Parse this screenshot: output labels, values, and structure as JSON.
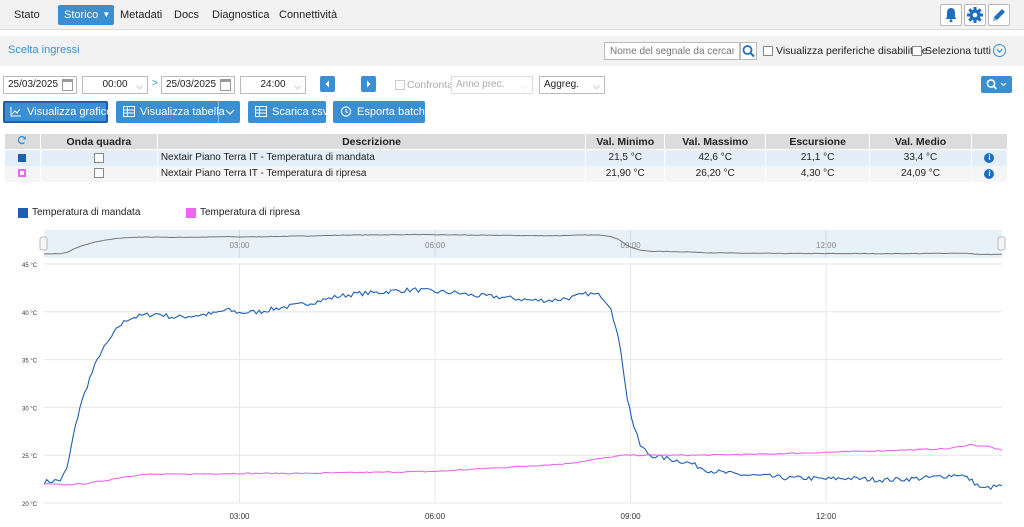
{
  "nav": {
    "items": [
      "Stato",
      "Storico",
      "Metadati",
      "Docs",
      "Diagnostica",
      "Connettività"
    ],
    "active_index": 1
  },
  "top_icons": [
    "bell-icon",
    "gear-icon",
    "pencil-icon"
  ],
  "subbar": {
    "title": "Scelta ingressi",
    "search_placeholder": "Nome del segnale da cercare",
    "show_disabled_label": "Visualizza periferiche disabilitate",
    "select_all_label": "Seleziona tutti"
  },
  "controls": {
    "date_from": "25/03/2025",
    "time_from": "00:00",
    "date_to": "25/03/2025",
    "time_to": "24:00",
    "compare_label": "Confronta",
    "compare_option": "Anno prec.",
    "aggregation": "Aggreg."
  },
  "buttons": {
    "show_chart": "Visualizza grafico",
    "show_table": "Visualizza tabella",
    "download_csv": "Scarica csv",
    "export_batch": "Esporta batch"
  },
  "table": {
    "headers": [
      "Onda quadra",
      "Descrizione",
      "Val. Minimo",
      "Val. Massimo",
      "Escursione",
      "Val. Medio"
    ],
    "rows": [
      {
        "color": "#1e5fb4",
        "description": "Nextair Piano Terra IT - Temperatura di mandata",
        "min": "21,5 °C",
        "max": "42,6 °C",
        "range": "21,1 °C",
        "avg": "33,4 °C"
      },
      {
        "color": "#ee66ee",
        "description": "Nextair Piano Terra IT - Temperatura di ripresa",
        "min": "21,90 °C",
        "max": "26,20 °C",
        "range": "4,30 °C",
        "avg": "24,09 °C"
      }
    ]
  },
  "chart_data": {
    "type": "line",
    "x_tick_labels": [
      "03:00",
      "06:00",
      "09:00",
      "12:00"
    ],
    "y_tick_labels": [
      "45 °C",
      "40 °C",
      "35 °C",
      "30 °C",
      "25 °C",
      "20 °C"
    ],
    "ylim": [
      20,
      45
    ],
    "xlim_hours": [
      0,
      14.7
    ],
    "navigator_tick_labels": [
      "03:00",
      "06:00",
      "09:00",
      "12:00"
    ],
    "series": [
      {
        "name": "Temperatura di mandata",
        "color": "#1e5fb4",
        "points": [
          [
            0,
            22.2
          ],
          [
            0.25,
            22.4
          ],
          [
            0.35,
            23.5
          ],
          [
            0.45,
            27
          ],
          [
            0.55,
            30
          ],
          [
            0.7,
            33
          ],
          [
            0.85,
            35.5
          ],
          [
            1.0,
            37
          ],
          [
            1.15,
            38.5
          ],
          [
            1.3,
            39.3
          ],
          [
            1.5,
            39.6
          ],
          [
            1.75,
            39.8
          ],
          [
            2.0,
            39.4
          ],
          [
            2.3,
            39.6
          ],
          [
            2.6,
            39.8
          ],
          [
            2.8,
            40.2
          ],
          [
            3.0,
            39.9
          ],
          [
            3.3,
            40.0
          ],
          [
            3.6,
            40.4
          ],
          [
            3.9,
            40.7
          ],
          [
            4.2,
            41.1
          ],
          [
            4.5,
            41.6
          ],
          [
            4.8,
            41.9
          ],
          [
            5.1,
            42.0
          ],
          [
            5.4,
            42.2
          ],
          [
            5.7,
            42.3
          ],
          [
            6.0,
            42.1
          ],
          [
            6.3,
            42.0
          ],
          [
            6.6,
            41.7
          ],
          [
            6.9,
            41.6
          ],
          [
            7.2,
            41.4
          ],
          [
            7.5,
            41.2
          ],
          [
            7.8,
            41.2
          ],
          [
            8.1,
            41.5
          ],
          [
            8.35,
            41.9
          ],
          [
            8.55,
            41.7
          ],
          [
            8.7,
            40.5
          ],
          [
            8.85,
            36
          ],
          [
            8.95,
            31
          ],
          [
            9.05,
            28
          ],
          [
            9.15,
            26
          ],
          [
            9.3,
            25.0
          ],
          [
            9.6,
            24.6
          ],
          [
            9.9,
            24.2
          ],
          [
            10.2,
            23.4
          ],
          [
            10.5,
            23.1
          ],
          [
            10.8,
            22.9
          ],
          [
            11.1,
            22.8
          ],
          [
            11.4,
            22.6
          ],
          [
            11.7,
            22.6
          ],
          [
            12.0,
            22.5
          ],
          [
            12.3,
            22.6
          ],
          [
            12.6,
            22.5
          ],
          [
            12.9,
            22.4
          ],
          [
            13.2,
            22.5
          ],
          [
            13.5,
            22.6
          ],
          [
            13.8,
            22.8
          ],
          [
            14.05,
            23.0
          ],
          [
            14.2,
            22.5
          ],
          [
            14.4,
            21.5
          ],
          [
            14.7,
            21.8
          ]
        ]
      },
      {
        "name": "Temperatura di ripresa",
        "color": "#ee66ee",
        "points": [
          [
            0,
            22.0
          ],
          [
            0.3,
            21.9
          ],
          [
            0.6,
            22.0
          ],
          [
            0.9,
            22.3
          ],
          [
            1.2,
            22.7
          ],
          [
            1.5,
            23.0
          ],
          [
            2.0,
            23.0
          ],
          [
            3.0,
            23.1
          ],
          [
            4.0,
            23.1
          ],
          [
            5.0,
            23.2
          ],
          [
            6.0,
            23.3
          ],
          [
            7.0,
            23.7
          ],
          [
            8.0,
            24.1
          ],
          [
            8.5,
            24.6
          ],
          [
            8.9,
            25.0
          ],
          [
            9.2,
            25.0
          ],
          [
            9.5,
            25.0
          ],
          [
            10.0,
            25.0
          ],
          [
            11.0,
            25.1
          ],
          [
            12.0,
            25.3
          ],
          [
            12.5,
            25.4
          ],
          [
            13.0,
            25.5
          ],
          [
            13.5,
            25.6
          ],
          [
            13.9,
            25.7
          ],
          [
            14.2,
            26.1
          ],
          [
            14.5,
            25.9
          ],
          [
            14.7,
            25.5
          ]
        ]
      }
    ]
  }
}
